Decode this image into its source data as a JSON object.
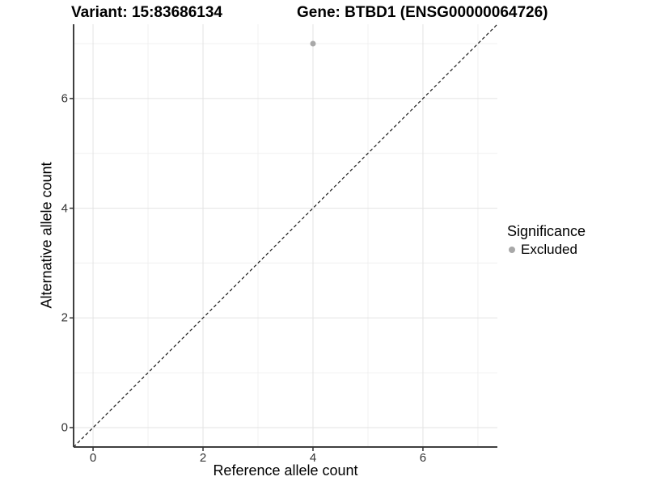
{
  "titles": {
    "variant": "Variant: 15:83686134",
    "gene": "Gene: BTBD1 (ENSG00000064726)"
  },
  "chart_data": {
    "type": "scatter",
    "xlabel": "Reference allele count",
    "ylabel": "Alternative allele count",
    "xlim": [
      -0.354,
      7.354
    ],
    "ylim": [
      -0.354,
      7.354
    ],
    "x_ticks": [
      0,
      2,
      4,
      6
    ],
    "y_ticks": [
      0,
      2,
      4,
      6
    ],
    "x_minor_gridlines": [
      1,
      3,
      5,
      7
    ],
    "y_minor_gridlines": [
      1,
      3,
      5,
      7
    ],
    "grid": true,
    "points": [
      {
        "x": 4,
        "y": 7,
        "significance": "Excluded"
      }
    ],
    "identity_line": {
      "style": "dashed",
      "slope": 1,
      "intercept": 0
    },
    "legend": {
      "title": "Significance",
      "position": "right",
      "items": [
        {
          "label": "Excluded",
          "color": "#a8a8a8"
        }
      ]
    }
  },
  "colors": {
    "point": "#a8a8a8",
    "grid_major": "#e3e3e3",
    "grid_minor": "#f0f0f0",
    "axis_line": "#3f3f3f",
    "tick_mark": "#333333",
    "identity_line": "#1a1a1a",
    "background": "#ffffff"
  }
}
